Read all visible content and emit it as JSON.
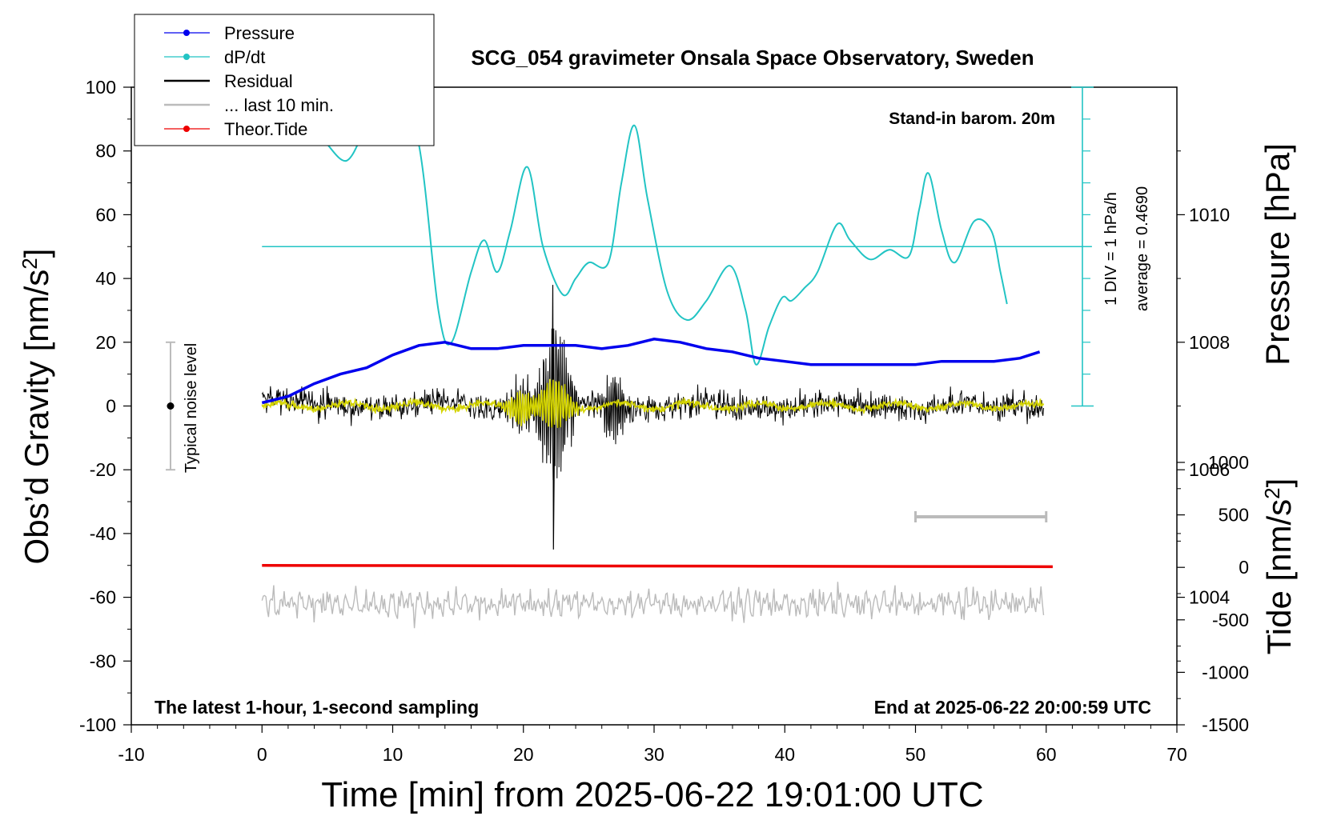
{
  "chart_data": {
    "type": "line",
    "title": "SCG_054 gravimeter Onsala Space Observatory, Sweden",
    "xlabel": "Time [min] from 2025-06-22 19:01:00 UTC",
    "ylabel_main": "Obs’d Gravity [nm/s",
    "ylabel_main_sup": "2",
    "ylabel_main_end": "]",
    "ylabel_pressure": "Pressure [hPa]",
    "ylabel_tide": "Tide [nm/s",
    "ylabel_tide_sup": "2",
    "ylabel_tide_end": "]",
    "xlim": [
      -10,
      70
    ],
    "ylim": [
      -100,
      100
    ],
    "pressure_lim": [
      1002,
      1012
    ],
    "tide_lim": [
      -1500,
      1000
    ],
    "x_ticks": [
      -10,
      0,
      10,
      20,
      30,
      40,
      50,
      60,
      70
    ],
    "x_tick_labels": [
      "-10",
      "0",
      "10",
      "20",
      "30",
      "40",
      "50",
      "60",
      "70"
    ],
    "y_ticks": [
      -100,
      -80,
      -60,
      -40,
      -20,
      0,
      20,
      40,
      60,
      80,
      100
    ],
    "y_tick_labels": [
      "-100",
      "-80",
      "-60",
      "-40",
      "-20",
      "0",
      "20",
      "40",
      "60",
      "80",
      "100"
    ],
    "pressure_ticks": [
      1004,
      1006,
      1008,
      1010
    ],
    "pressure_tick_labels": [
      "1004",
      "1006",
      "1008",
      "1010"
    ],
    "tide_ticks": [
      -1500,
      -1000,
      -500,
      0,
      500,
      1000
    ],
    "tide_tick_labels": [
      "-1500",
      "-1000",
      "-500",
      "0",
      "500",
      "1000"
    ],
    "annotations": {
      "stand_in": "Stand-in barom. 20m",
      "latest": "The latest 1-hour, 1-second sampling",
      "end_at": "End at 2025-06-22 20:00:59 UTC",
      "div": "1 DIV = 1 hPa/h",
      "average": "average = 0.4690",
      "noise": "Typical noise level"
    },
    "legend": [
      {
        "name": "Pressure",
        "color": "#0000ee",
        "marker": true
      },
      {
        "name": "dP/dt",
        "color": "#22c4c4",
        "marker": true
      },
      {
        "name": "Residual",
        "color": "#000000",
        "marker": false
      },
      {
        "name": "... last 10 min.",
        "color": "#bbbbbb",
        "marker": false
      },
      {
        "name": "Theor.Tide",
        "color": "#ee0000",
        "marker": true
      }
    ],
    "colors": {
      "pressure": "#0000ee",
      "dpdt": "#22c4c4",
      "residual": "#000000",
      "smooth": "#d4d400",
      "last10": "#bbbbbb",
      "tide": "#ee0000",
      "noise": "#bbbbbb"
    },
    "series": {
      "pressure": {
        "x": [
          0,
          2,
          4,
          6,
          8,
          10,
          12,
          14,
          16,
          18,
          20,
          22,
          24,
          26,
          28,
          30,
          32,
          34,
          36,
          38,
          40,
          42,
          44,
          46,
          48,
          50,
          52,
          54,
          56,
          58,
          59.5
        ],
        "y": [
          1007.05,
          1007.15,
          1007.35,
          1007.5,
          1007.6,
          1007.8,
          1007.95,
          1008.0,
          1007.9,
          1007.9,
          1007.95,
          1007.95,
          1007.95,
          1007.9,
          1007.95,
          1008.05,
          1008.0,
          1007.9,
          1007.85,
          1007.75,
          1007.7,
          1007.65,
          1007.65,
          1007.65,
          1007.65,
          1007.65,
          1007.7,
          1007.7,
          1007.7,
          1007.75,
          1007.85
        ]
      },
      "dpdt": {
        "x": [
          5,
          6.5,
          8,
          10,
          12,
          13.5,
          14.5,
          16,
          17,
          18,
          19,
          20.3,
          21.5,
          23,
          24,
          25,
          26.5,
          27.5,
          28.5,
          29.5,
          31,
          32.5,
          34,
          35.8,
          37,
          37.8,
          38.8,
          39.8,
          40.5,
          41.5,
          42.5,
          44,
          45,
          46.5,
          48,
          49.5,
          50.3,
          51,
          52,
          53,
          54.5,
          55.8,
          56.5,
          57
        ],
        "y": [
          82,
          77,
          88,
          105,
          82,
          30,
          20,
          42,
          52,
          42,
          55,
          75,
          50,
          35,
          40,
          45,
          45,
          70,
          88,
          65,
          36,
          27,
          33,
          44,
          30,
          13,
          25,
          34,
          33,
          37,
          42,
          57,
          52,
          46,
          49,
          47,
          62,
          73,
          55,
          45,
          58,
          55,
          42,
          32
        ]
      },
      "tide": {
        "x": [
          0,
          60.5
        ],
        "y": [
          -50,
          -50.4
        ]
      }
    }
  }
}
